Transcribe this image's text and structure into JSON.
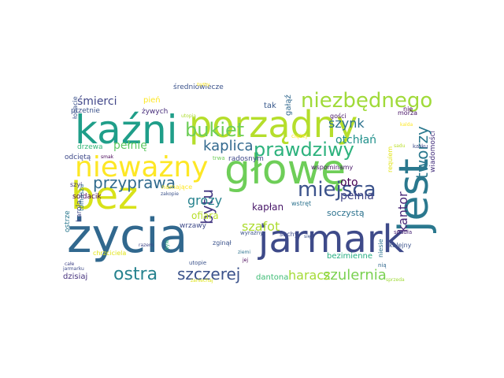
{
  "cloud": {
    "words": [
      {
        "text": "życia",
        "color": "#31688e"
      },
      {
        "text": "jarmark",
        "color": "#3e4a89"
      },
      {
        "text": "kaźni",
        "color": "#1f9e89"
      },
      {
        "text": "głowę",
        "color": "#6ece58"
      },
      {
        "text": "bez",
        "color": "#d8e219"
      },
      {
        "text": "jest",
        "color": "#2a788e"
      },
      {
        "text": "porządny",
        "color": "#b5de2b"
      },
      {
        "text": "nieważny",
        "color": "#fde725"
      },
      {
        "text": "niezbędnego",
        "color": "#a0da39"
      },
      {
        "text": "bukiet",
        "color": "#6ece58"
      },
      {
        "text": "miejsca",
        "color": "#3b528b"
      },
      {
        "text": "prawdziwy",
        "color": "#2db27d"
      },
      {
        "text": "bytu",
        "color": "#443983"
      },
      {
        "text": "przyprawa",
        "color": "#306a8e"
      },
      {
        "text": "ostra",
        "color": "#26828e"
      },
      {
        "text": "szczerej",
        "color": "#3b528b"
      },
      {
        "text": "szulernia",
        "color": "#7ad151"
      },
      {
        "text": "tworzy",
        "color": "#2a788e"
      },
      {
        "text": "kaplica",
        "color": "#31688e"
      },
      {
        "text": "kantor",
        "color": "#482878"
      },
      {
        "text": "haracz",
        "color": "#a5db36"
      },
      {
        "text": "szafot",
        "color": "#addc30"
      },
      {
        "text": "grozy",
        "color": "#26828e"
      },
      {
        "text": "szynk",
        "color": "#2c728e"
      },
      {
        "text": "oto",
        "color": "#440154"
      },
      {
        "text": "pełnia",
        "color": "#414487"
      },
      {
        "text": "otchłań",
        "color": "#21918c"
      },
      {
        "text": "pełnię",
        "color": "#5ec962"
      },
      {
        "text": "śmierci",
        "color": "#404688"
      },
      {
        "text": "ofiara",
        "color": "#b8de29"
      },
      {
        "text": "kapłan",
        "color": "#481769"
      },
      {
        "text": "soczystą",
        "color": "#2c728e"
      },
      {
        "text": "bezimienne",
        "color": "#26ad81"
      },
      {
        "text": "dzisiaj",
        "color": "#46327e"
      },
      {
        "text": "dantona",
        "color": "#3dbc74"
      },
      {
        "text": "gałąź",
        "color": "#31688e"
      },
      {
        "text": "tak",
        "color": "#38598c"
      },
      {
        "text": "pień",
        "color": "#fde725"
      },
      {
        "text": "średniowiecze",
        "color": "#3b528b"
      },
      {
        "text": "żywych",
        "color": "#472d7b"
      },
      {
        "text": "przetnie",
        "color": "#3b528b"
      },
      {
        "text": "drzewa",
        "color": "#35b779"
      },
      {
        "text": "odciętą",
        "color": "#3e4989"
      },
      {
        "text": "radosnym",
        "color": "#3e4989"
      },
      {
        "text": "wspominamy",
        "color": "#481668"
      },
      {
        "text": "requiem",
        "color": "#e2e418"
      },
      {
        "text": "wiadomości",
        "color": "#46327e"
      },
      {
        "text": "gości",
        "color": "#481668"
      },
      {
        "text": "morza",
        "color": "#481467"
      },
      {
        "text": "szyi",
        "color": "#453781"
      },
      {
        "text": "sołdacik",
        "color": "#440154"
      },
      {
        "text": "karola",
        "color": "#3f4788"
      },
      {
        "text": "namające",
        "color": "#fde725"
      },
      {
        "text": "wstręt",
        "color": "#2c728e"
      },
      {
        "text": "kolejny",
        "color": "#3b528b"
      },
      {
        "text": "ostrze",
        "color": "#2a788e"
      },
      {
        "text": "wrzawy",
        "color": "#3e4a89"
      },
      {
        "text": "zginął",
        "color": "#3b528b"
      },
      {
        "text": "suchy",
        "color": "#3e4a89"
      },
      {
        "text": "chrzciciela",
        "color": "#e2e418"
      },
      {
        "text": "utopie",
        "color": "#3b528b"
      },
      {
        "text": "niesie",
        "color": "#2c728e"
      },
      {
        "text": "spadła",
        "color": "#482475"
      },
      {
        "text": "nią",
        "color": "#31688e"
      },
      {
        "text": "łopacie",
        "color": "#3b528b"
      },
      {
        "text": "całe",
        "color": "#414487"
      },
      {
        "text": "jarmarku",
        "color": "#3e4a89"
      },
      {
        "text": "byłby",
        "color": "#fde725"
      },
      {
        "text": "wyraźny",
        "color": "#3b528b"
      },
      {
        "text": "zaniechaj",
        "color": "#dde318"
      },
      {
        "text": "tomaszu",
        "color": "#2c728e"
      },
      {
        "text": "utopia",
        "color": "#addc30"
      },
      {
        "text": "nie",
        "color": "#440154"
      },
      {
        "text": "karku",
        "color": "#3e4a89"
      },
      {
        "text": "sprzeda",
        "color": "#a0da39"
      },
      {
        "text": "kalda",
        "color": "#fde725"
      },
      {
        "text": "ciężej",
        "color": "#fde725"
      },
      {
        "text": "sadu",
        "color": "#b8de29"
      },
      {
        "text": "smak",
        "color": "#440154"
      },
      {
        "text": "trwa",
        "color": "#6ece58"
      },
      {
        "text": "zakopie",
        "color": "#3b528b"
      },
      {
        "text": "razem",
        "color": "#404688"
      },
      {
        "text": "się",
        "color": "#3b528b"
      },
      {
        "text": "ziemi",
        "color": "#2c728e"
      },
      {
        "text": "jej",
        "color": "#440154"
      },
      {
        "text": "byle",
        "color": "#2db27d"
      }
    ]
  }
}
